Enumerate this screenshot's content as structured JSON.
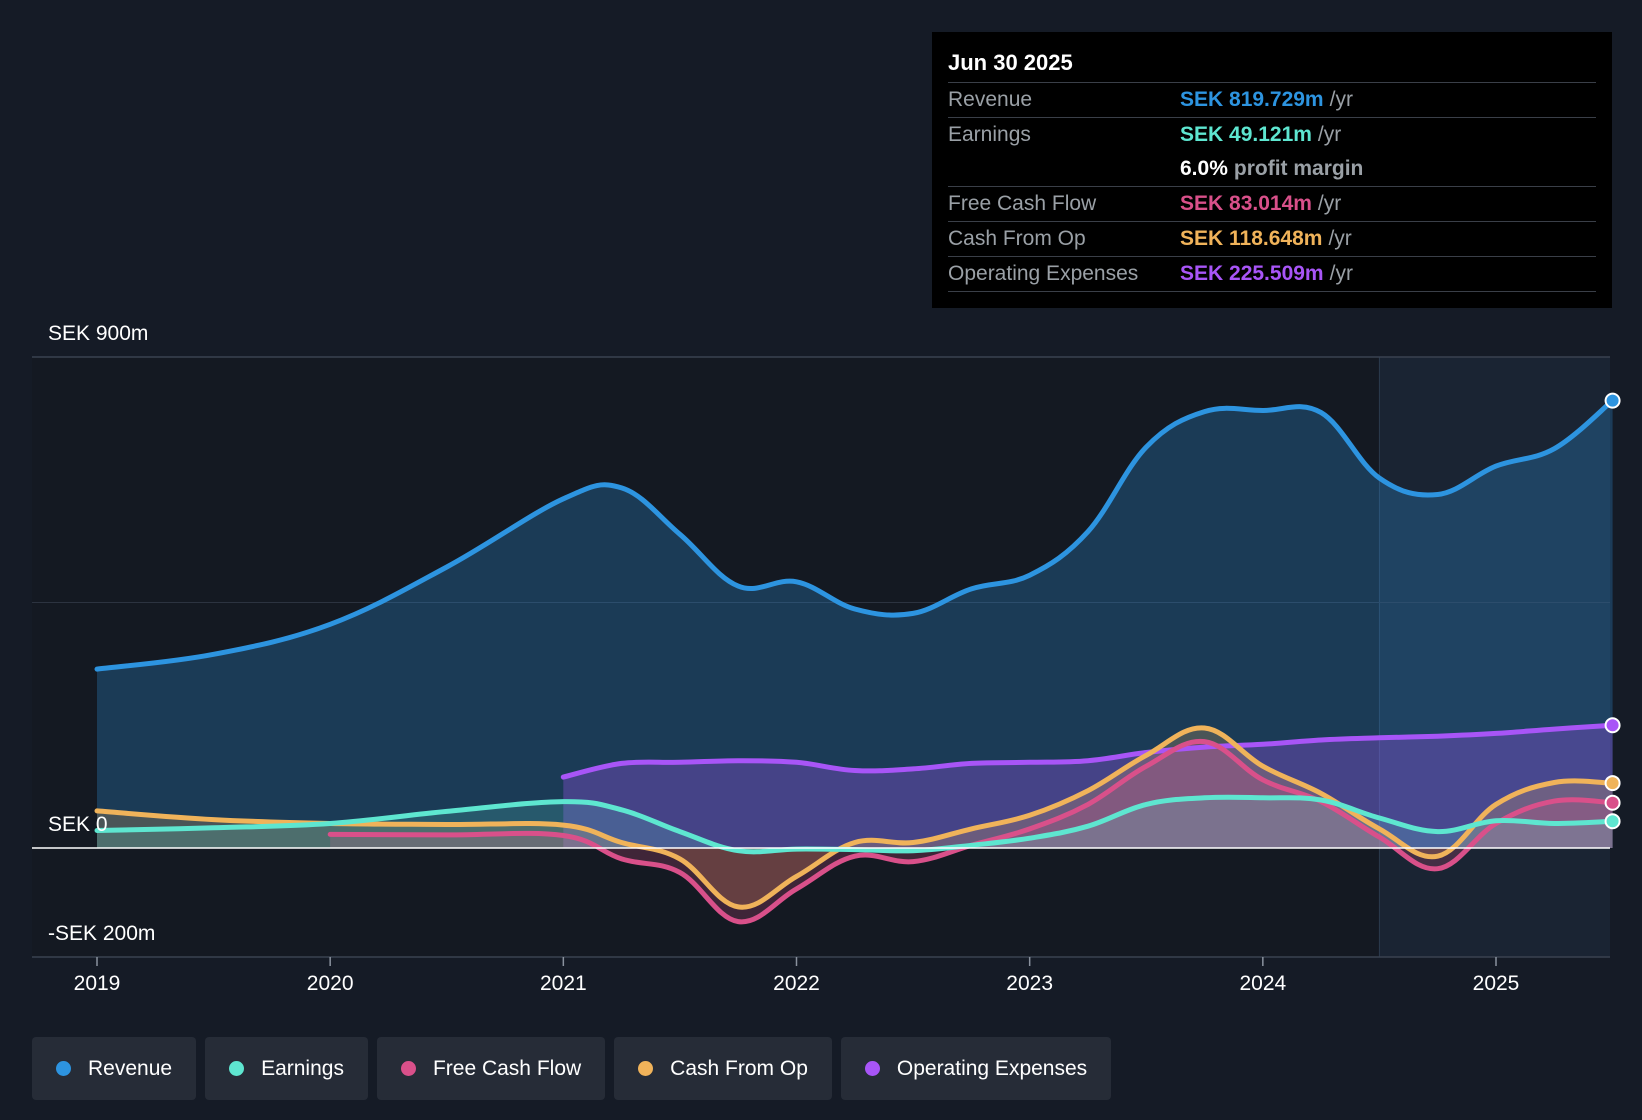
{
  "tooltip": {
    "date": "Jun 30 2025",
    "rows": [
      {
        "label": "Revenue",
        "value": "SEK 819.729m",
        "unit": "/yr",
        "color": "#2d94e0"
      },
      {
        "label": "Earnings",
        "value": "SEK 49.121m",
        "unit": "/yr",
        "color": "#5ee6d0"
      },
      {
        "label": "",
        "value": "6.0%",
        "unit": "profit margin",
        "color": "#ffffff"
      },
      {
        "label": "Free Cash Flow",
        "value": "SEK 83.014m",
        "unit": "/yr",
        "color": "#d9508a"
      },
      {
        "label": "Cash From Op",
        "value": "SEK 118.648m",
        "unit": "/yr",
        "color": "#f0b35a"
      },
      {
        "label": "Operating Expenses",
        "value": "SEK 225.509m",
        "unit": "/yr",
        "color": "#a855f7"
      }
    ]
  },
  "legend": [
    {
      "label": "Revenue",
      "color": "#2d94e0"
    },
    {
      "label": "Earnings",
      "color": "#5ee6d0"
    },
    {
      "label": "Free Cash Flow",
      "color": "#d9508a"
    },
    {
      "label": "Cash From Op",
      "color": "#f0b35a"
    },
    {
      "label": "Operating Expenses",
      "color": "#a855f7"
    }
  ],
  "chart_data": {
    "type": "line",
    "y_labels": {
      "top": "SEK 900m",
      "zero": "SEK 0",
      "bottom": "-SEK 200m"
    },
    "ylim": [
      -200,
      900
    ],
    "xlim": [
      2019.0,
      2025.5
    ],
    "x_ticks": [
      {
        "value": 2019,
        "label": "2019"
      },
      {
        "value": 2020,
        "label": "2020"
      },
      {
        "value": 2021,
        "label": "2021"
      },
      {
        "value": 2022,
        "label": "2022"
      },
      {
        "value": 2023,
        "label": "2023"
      },
      {
        "value": 2024,
        "label": "2024"
      },
      {
        "value": 2025,
        "label": "2025"
      }
    ],
    "forecast_start": 2024.5,
    "series": [
      {
        "name": "Revenue",
        "color": "#2d94e0",
        "fill": true,
        "x": [
          2019.0,
          2019.5,
          2020.0,
          2020.5,
          2021.0,
          2021.25,
          2021.5,
          2021.75,
          2022.0,
          2022.25,
          2022.5,
          2022.75,
          2023.0,
          2023.25,
          2023.5,
          2023.75,
          2024.0,
          2024.25,
          2024.5,
          2024.75,
          2025.0,
          2025.25,
          2025.5
        ],
        "y": [
          328,
          355,
          410,
          515,
          640,
          660,
          575,
          480,
          488,
          438,
          430,
          475,
          500,
          580,
          735,
          800,
          802,
          798,
          678,
          648,
          700,
          732,
          820
        ]
      },
      {
        "name": "Operating Expenses",
        "color": "#a855f7",
        "fill": true,
        "x": [
          2021.0,
          2021.25,
          2021.5,
          2021.75,
          2022.0,
          2022.25,
          2022.5,
          2022.75,
          2023.0,
          2023.25,
          2023.5,
          2023.75,
          2024.0,
          2024.25,
          2024.5,
          2024.75,
          2025.0,
          2025.25,
          2025.5
        ],
        "y": [
          130,
          155,
          157,
          160,
          157,
          142,
          145,
          155,
          157,
          160,
          175,
          185,
          190,
          198,
          202,
          205,
          210,
          218,
          225
        ]
      },
      {
        "name": "Cash From Op",
        "color": "#f0b35a",
        "fill": true,
        "x": [
          2019.0,
          2019.5,
          2020.0,
          2020.5,
          2021.0,
          2021.25,
          2021.5,
          2021.75,
          2022.0,
          2022.25,
          2022.5,
          2022.75,
          2023.0,
          2023.25,
          2023.5,
          2023.75,
          2024.0,
          2024.25,
          2024.5,
          2024.75,
          2025.0,
          2025.25,
          2025.5
        ],
        "y": [
          68,
          52,
          45,
          43,
          42,
          10,
          -20,
          -108,
          -52,
          10,
          10,
          35,
          60,
          105,
          170,
          220,
          150,
          100,
          35,
          -15,
          80,
          120,
          119
        ]
      },
      {
        "name": "Free Cash Flow",
        "color": "#d9508a",
        "fill": true,
        "x": [
          2020.0,
          2020.5,
          2021.0,
          2021.25,
          2021.5,
          2021.75,
          2022.0,
          2022.25,
          2022.5,
          2022.75,
          2023.0,
          2023.25,
          2023.5,
          2023.75,
          2024.0,
          2024.25,
          2024.5,
          2024.75,
          2025.0,
          2025.25,
          2025.5
        ],
        "y": [
          25,
          24,
          23,
          -20,
          -45,
          -135,
          -75,
          -15,
          -25,
          5,
          35,
          80,
          150,
          195,
          125,
          85,
          20,
          -38,
          45,
          86,
          83
        ]
      },
      {
        "name": "Earnings",
        "color": "#5ee6d0",
        "fill": true,
        "x": [
          2019.0,
          2019.5,
          2020.0,
          2020.5,
          2021.0,
          2021.25,
          2021.5,
          2021.75,
          2022.0,
          2022.25,
          2022.5,
          2022.75,
          2023.0,
          2023.25,
          2023.5,
          2023.75,
          2024.0,
          2024.25,
          2024.5,
          2024.75,
          2025.0,
          2025.25,
          2025.5
        ],
        "y": [
          32,
          37,
          45,
          67,
          85,
          70,
          30,
          -5,
          -2,
          -3,
          -5,
          5,
          18,
          40,
          80,
          92,
          92,
          88,
          55,
          30,
          50,
          45,
          49
        ]
      }
    ]
  }
}
